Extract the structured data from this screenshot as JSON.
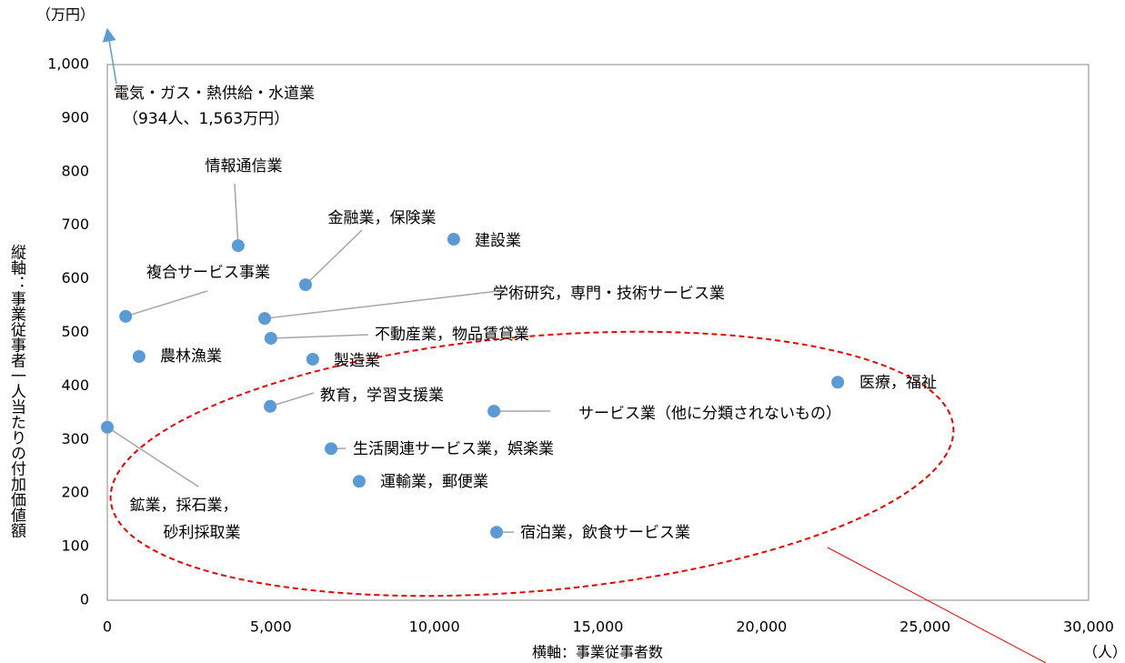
{
  "chart_data": {
    "type": "scatter",
    "y_unit": "（万円）",
    "x_unit": "（人）",
    "xlabel": "横軸：事業従事者数",
    "ylabel": "縦軸：事業従事者一人当たりの付加価値額",
    "xlim": [
      0,
      30000
    ],
    "ylim": [
      0,
      1000
    ],
    "xticks": [
      0,
      {
        "value": 5000,
        "label": "5,000"
      },
      {
        "value": 10000,
        "label": "10,000"
      },
      {
        "value": 15000,
        "label": "15,000"
      },
      {
        "value": 20000,
        "label": "20,000"
      },
      {
        "value": 25000,
        "label": "25,000"
      },
      {
        "value": 30000,
        "label": "30,000"
      }
    ],
    "yticks": [
      0,
      100,
      200,
      300,
      400,
      500,
      600,
      700,
      800,
      900,
      {
        "value": 1000,
        "label": "1,000"
      }
    ],
    "color": "#5b9bd5",
    "off_chart_annotation": [
      "電気・ガス・熱供給・水道業",
      "（934人、1,563万円）"
    ],
    "points": [
      {
        "label": "情報通信業",
        "x": 4000,
        "y": 662
      },
      {
        "label": "金融業，保険業",
        "x": 6060,
        "y": 589
      },
      {
        "label": "建設業",
        "x": 10590,
        "y": 674
      },
      {
        "label": "複合サービス事業",
        "x": 560,
        "y": 530
      },
      {
        "label": "学術研究，専門・技術サービス業",
        "x": 4810,
        "y": 526
      },
      {
        "label": "不動産業，物品賃貸業",
        "x": 5000,
        "y": 489
      },
      {
        "label": "農林漁業",
        "x": 970,
        "y": 455
      },
      {
        "label": "製造業",
        "x": 6280,
        "y": 450
      },
      {
        "label": "医療，福祉",
        "x": 22330,
        "y": 407
      },
      {
        "label": "教育，学習支援業",
        "x": 4980,
        "y": 362
      },
      {
        "label": "サービス業（他に分類されないもの）",
        "x": 11820,
        "y": 353
      },
      {
        "label": [
          "鉱業，採石業，",
          "砂利採取業"
        ],
        "x": 0,
        "y": 323
      },
      {
        "label": "生活関連サービス業，娯楽業",
        "x": 6840,
        "y": 283
      },
      {
        "label": "運輸業，郵便業",
        "x": 7700,
        "y": 222
      },
      {
        "label": "宿泊業，飲食サービス業",
        "x": 11900,
        "y": 127
      }
    ]
  }
}
